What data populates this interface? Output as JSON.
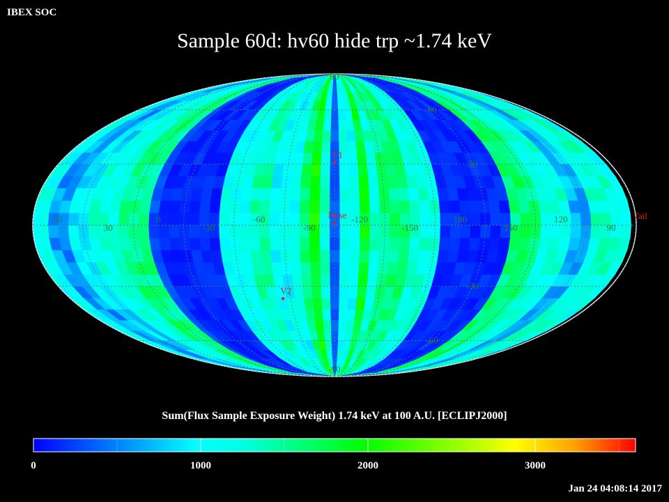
{
  "header": {
    "corner_label": "IBEX SOC",
    "title": "Sample 60d: hv60 hide trp ~1.74 keV",
    "timestamp": "Jan 24 04:08:14 2017"
  },
  "colors": {
    "background": "#000000",
    "grid": "#5a7a5a",
    "grid_label": "#2a7a3a",
    "marker": "#dd2222"
  },
  "chart_data": {
    "type": "heatmap",
    "projection": "mollweide",
    "frame": "ECLIPJ2000",
    "center_longitude": 255,
    "longitude_ticks": [
      {
        "value": 60,
        "label": "60"
      },
      {
        "value": 30,
        "label": "30"
      },
      {
        "value": 0,
        "label": "0"
      },
      {
        "value": -30,
        "label": "-30"
      },
      {
        "value": -60,
        "label": "-60"
      },
      {
        "value": -90,
        "label": "-90"
      },
      {
        "value": -120,
        "label": "-120"
      },
      {
        "value": -150,
        "label": "-150"
      },
      {
        "value": 180,
        "label": "180"
      },
      {
        "value": 150,
        "label": "150"
      },
      {
        "value": 120,
        "label": "120"
      },
      {
        "value": 90,
        "label": "90"
      }
    ],
    "latitude_ticks": [
      {
        "value": 90,
        "label": "90"
      },
      {
        "value": 60,
        "label": "60"
      },
      {
        "value": 30,
        "label": "30"
      },
      {
        "value": -30,
        "label": "-30"
      },
      {
        "value": -60,
        "label": "-60"
      },
      {
        "value": -90,
        "label": "-90"
      }
    ],
    "markers": [
      {
        "label": "V1",
        "lon": 255,
        "lat": 35
      },
      {
        "label": "Nose",
        "lon": 255,
        "lat": 5
      },
      {
        "label": "V2",
        "lon": 289,
        "lat": -32
      },
      {
        "label": "Tail",
        "lon": 75,
        "lat": 5
      }
    ],
    "colorbar": {
      "label": "Sum(Flux Sample Exposure Weight)  1.74 keV at 100 A.U. [ECLIPJ2000]",
      "min": 0,
      "max": 3600,
      "ticks": [
        {
          "value": 0,
          "label": "0"
        },
        {
          "value": 1000,
          "label": "1000"
        },
        {
          "value": 2000,
          "label": "2000"
        },
        {
          "value": 3000,
          "label": "3000"
        }
      ]
    },
    "flux_bands": [
      {
        "lon_range": [
          68,
          85
        ],
        "value": 1100
      },
      {
        "lon_range": [
          85,
          100
        ],
        "value": 1300
      },
      {
        "lon_range": [
          100,
          112
        ],
        "value": 700
      },
      {
        "lon_range": [
          112,
          130
        ],
        "value": 1200
      },
      {
        "lon_range": [
          130,
          150
        ],
        "value": 1600
      },
      {
        "lon_range": [
          150,
          168
        ],
        "value": 150
      },
      {
        "lon_range": [
          168,
          195
        ],
        "value": 150
      },
      {
        "lon_range": [
          195,
          212
        ],
        "value": 1200
      },
      {
        "lon_range": [
          212,
          228
        ],
        "value": 1550
      },
      {
        "lon_range": [
          228,
          237
        ],
        "value": 1250
      },
      {
        "lon_range": [
          237,
          243
        ],
        "value": 1850
      },
      {
        "lon_range": [
          243,
          251
        ],
        "value": 1100
      },
      {
        "lon_range": [
          251,
          258
        ],
        "value": 350
      },
      {
        "lon_range": [
          258,
          264
        ],
        "value": 1300
      },
      {
        "lon_range": [
          264,
          270
        ],
        "value": 1950
      },
      {
        "lon_range": [
          270,
          278
        ],
        "value": 1600
      },
      {
        "lon_range": [
          278,
          292
        ],
        "value": 1050
      },
      {
        "lon_range": [
          292,
          306
        ],
        "value": 1400
      },
      {
        "lon_range": [
          306,
          322
        ],
        "value": 1100
      },
      {
        "lon_range": [
          322,
          342
        ],
        "value": 150
      },
      {
        "lon_range": [
          342,
          360
        ],
        "value": 150
      },
      {
        "lon_range": [
          0,
          5
        ],
        "value": 300
      },
      {
        "lon_range": [
          5,
          22
        ],
        "value": 1550
      },
      {
        "lon_range": [
          22,
          40
        ],
        "value": 1200
      },
      {
        "lon_range": [
          40,
          55
        ],
        "value": 900
      },
      {
        "lon_range": [
          55,
          68
        ],
        "value": 600
      }
    ]
  }
}
